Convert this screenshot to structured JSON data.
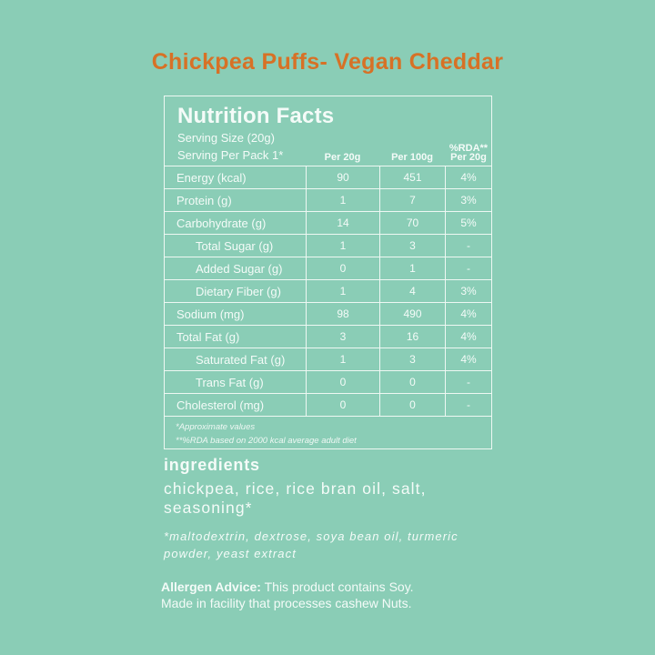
{
  "title": "Chickpea Puffs- Vegan Cheddar",
  "colors": {
    "background": "#8ACDB6",
    "title": "#D77126",
    "text": "#F4FBF8"
  },
  "nutrition": {
    "heading": "Nutrition Facts",
    "serving_size": "Serving Size (20g)",
    "serving_per_pack": "Serving Per Pack 1*",
    "columns": {
      "per20": "Per 20g",
      "per100": "Per 100g",
      "rda_line1": "%RDA**",
      "rda_line2": "Per 20g"
    },
    "rows": [
      {
        "label": "Energy (kcal)",
        "per20": "90",
        "per100": "451",
        "rda": "4%"
      },
      {
        "label": "Protein (g)",
        "per20": "1",
        "per100": "7",
        "rda": "3%"
      },
      {
        "label": "Carbohydrate (g)",
        "per20": "14",
        "per100": "70",
        "rda": "5%"
      },
      {
        "label": "Total Sugar (g)",
        "per20": "1",
        "per100": "3",
        "rda": "-"
      },
      {
        "label": "Added Sugar (g)",
        "per20": "0",
        "per100": "1",
        "rda": "-"
      },
      {
        "label": "Dietary Fiber (g)",
        "per20": "1",
        "per100": "4",
        "rda": "3%"
      },
      {
        "label": "Sodium (mg)",
        "per20": "98",
        "per100": "490",
        "rda": "4%"
      },
      {
        "label": "Total Fat (g)",
        "per20": "3",
        "per100": "16",
        "rda": "4%"
      },
      {
        "label": "Saturated Fat (g)",
        "per20": "1",
        "per100": "3",
        "rda": "4%"
      },
      {
        "label": "Trans Fat (g)",
        "per20": "0",
        "per100": "0",
        "rda": "-"
      },
      {
        "label": "Cholesterol (mg)",
        "per20": "0",
        "per100": "0",
        "rda": "-"
      }
    ],
    "footnotes": [
      "*Approximate values",
      "**%RDA based on 2000 kcal average adult diet"
    ]
  },
  "ingredients": {
    "heading": "ingredients",
    "list": "chickpea, rice, rice bran oil, salt, seasoning*",
    "note": "*maltodextrin, dextrose, soya bean oil, turmeric powder, yeast extract"
  },
  "allergen": {
    "label": "Allergen Advice:",
    "text": " This product contains Soy.",
    "line2": "Made in facility that processes cashew Nuts."
  }
}
